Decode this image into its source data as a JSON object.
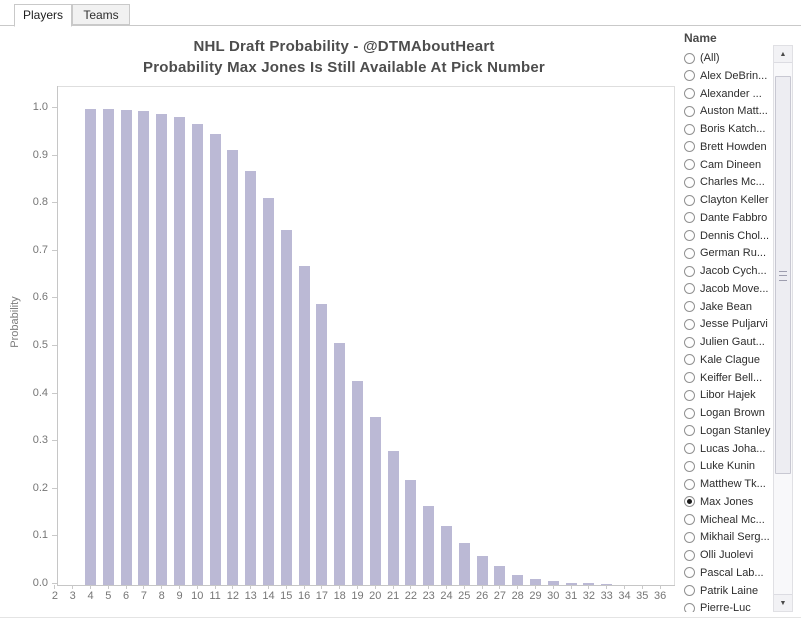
{
  "tabs": [
    {
      "label": "Players",
      "active": true
    },
    {
      "label": "Teams",
      "active": false
    }
  ],
  "chart": {
    "title_line1": "NHL Draft Probability - @DTMAboutHeart",
    "title_line2": "Probability Max Jones Is Still Available At Pick Number",
    "ylabel": "Probability"
  },
  "chart_data": {
    "type": "bar",
    "title": "NHL Draft Probability - @DTMAboutHeart",
    "subtitle": "Probability Max Jones Is Still Available At Pick Number",
    "xlabel": "",
    "ylabel": "Probability",
    "x": [
      2,
      3,
      4,
      5,
      6,
      7,
      8,
      9,
      10,
      11,
      12,
      13,
      14,
      15,
      16,
      17,
      18,
      19,
      20,
      21,
      22,
      23,
      24,
      25,
      26,
      27,
      28,
      29,
      30,
      31,
      32,
      33,
      34,
      35,
      36
    ],
    "values": [
      null,
      null,
      1.0,
      1.0,
      0.998,
      0.996,
      0.99,
      0.983,
      0.968,
      0.947,
      0.913,
      0.869,
      0.812,
      0.745,
      0.671,
      0.59,
      0.508,
      0.428,
      0.352,
      0.281,
      0.22,
      0.166,
      0.124,
      0.089,
      0.06,
      0.04,
      0.022,
      0.013,
      0.008,
      0.005,
      0.004,
      0.002,
      0.001,
      0.0005,
      0.0002
    ],
    "ylim": [
      0,
      1
    ],
    "ytick_labels": [
      "0.0",
      "0.1",
      "0.2",
      "0.3",
      "0.4",
      "0.5",
      "0.6",
      "0.7",
      "0.8",
      "0.9",
      "1.0"
    ],
    "bar_color": "#bbb9d5",
    "grid": false,
    "legend": false
  },
  "filter": {
    "title": "Name",
    "selected": "Max Jones",
    "options": [
      "(All)",
      "Alex DeBrin...",
      "Alexander ...",
      "Auston Matt...",
      "Boris Katch...",
      "Brett Howden",
      "Cam Dineen",
      "Charles Mc...",
      "Clayton Keller",
      "Dante Fabbro",
      "Dennis Chol...",
      "German Ru...",
      "Jacob Cych...",
      "Jacob Move...",
      "Jake Bean",
      "Jesse Puljarvi",
      "Julien Gaut...",
      "Kale Clague",
      "Keiffer Bell...",
      "Libor Hajek",
      "Logan Brown",
      "Logan Stanley",
      "Lucas Joha...",
      "Luke Kunin",
      "Matthew Tk...",
      "Max Jones",
      "Micheal Mc...",
      "Mikhail Serg...",
      "Olli Juolevi",
      "Pascal Lab...",
      "Patrik Laine",
      "Pierre-Luc"
    ]
  },
  "icons": {
    "scroll_up": "▲",
    "scroll_down": "▼"
  },
  "colors": {
    "bar": "#bbb9d5",
    "title_text": "#4d4d4d",
    "axis_text": "#767676",
    "plot_border": "#dedede",
    "axis_line": "#c6c6c6"
  }
}
